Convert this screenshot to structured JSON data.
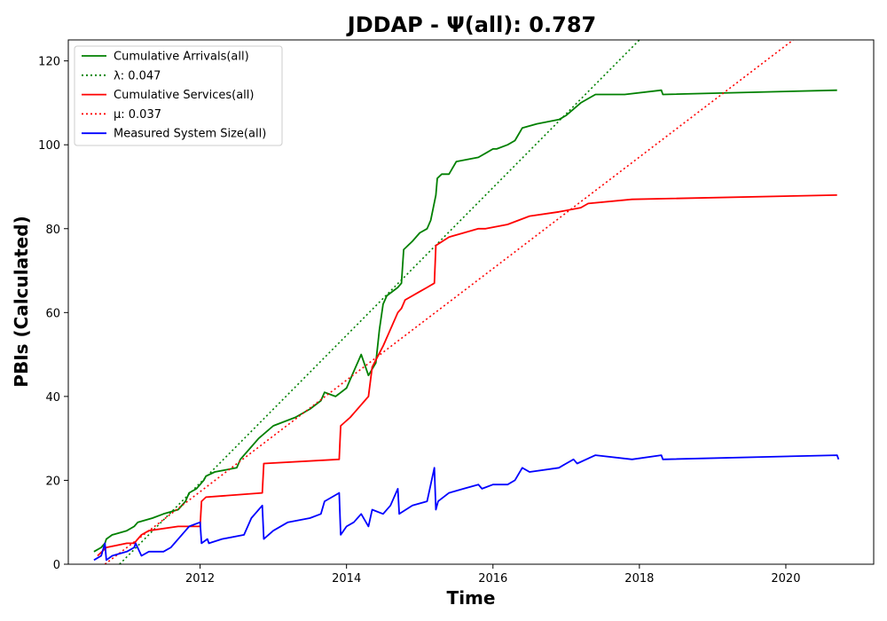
{
  "chart_data": {
    "type": "line",
    "title": "JDDAP -  Ψ(all): 0.787",
    "xlabel": "Time",
    "ylabel": "PBIs (Calculated)",
    "xlim": [
      2010.2,
      2021.2
    ],
    "ylim": [
      0,
      125
    ],
    "x_ticks": [
      2012,
      2014,
      2016,
      2018,
      2020
    ],
    "x_tick_labels": [
      "2012",
      "2014",
      "2016",
      "2018",
      "2020"
    ],
    "y_ticks": [
      0,
      20,
      40,
      60,
      80,
      100,
      120
    ],
    "y_tick_labels": [
      "0",
      "20",
      "40",
      "60",
      "80",
      "100",
      "120"
    ],
    "grid": false,
    "legend_position": "top-left",
    "series": [
      {
        "name": "Cumulative Arrivals(all)",
        "color": "#008000",
        "style": "solid",
        "x": [
          2010.55,
          2010.65,
          2010.7,
          2010.72,
          2010.8,
          2011.0,
          2011.1,
          2011.15,
          2011.35,
          2011.5,
          2011.7,
          2011.8,
          2011.85,
          2011.95,
          2012.0,
          2012.05,
          2012.08,
          2012.2,
          2012.5,
          2012.55,
          2012.7,
          2012.8,
          2013.0,
          2013.3,
          2013.5,
          2013.65,
          2013.7,
          2013.85,
          2014.0,
          2014.1,
          2014.2,
          2014.3,
          2014.4,
          2014.45,
          2014.5,
          2014.55,
          2014.7,
          2014.75,
          2014.78,
          2014.9,
          2015.0,
          2015.1,
          2015.15,
          2015.22,
          2015.24,
          2015.3,
          2015.4,
          2015.5,
          2015.8,
          2015.9,
          2016.0,
          2016.05,
          2016.2,
          2016.3,
          2016.4,
          2016.6,
          2016.9,
          2017.0,
          2017.2,
          2017.4,
          2017.8,
          2018.3,
          2018.32,
          2020.7
        ],
        "y": [
          3,
          4,
          5,
          6,
          7,
          8,
          9,
          10,
          11,
          12,
          13,
          15,
          17,
          18,
          19,
          20,
          21,
          22,
          23,
          25,
          28,
          30,
          33,
          35,
          37,
          39,
          41,
          40,
          42,
          46,
          50,
          45,
          48,
          56,
          62,
          64,
          66,
          67,
          75,
          77,
          79,
          80,
          82,
          88,
          92,
          93,
          93,
          96,
          97,
          98,
          99,
          99,
          100,
          101,
          104,
          105,
          106,
          107,
          110,
          112,
          112,
          113,
          112,
          113
        ]
      },
      {
        "name": "λ: 0.047",
        "color": "#008000",
        "style": "dotted",
        "x": [
          2010.9,
          2018.0
        ],
        "y": [
          0,
          125
        ]
      },
      {
        "name": "Cumulative Services(all)",
        "color": "#ff0000",
        "style": "solid",
        "x": [
          2010.6,
          2010.72,
          2011.0,
          2011.1,
          2011.15,
          2011.2,
          2011.3,
          2011.7,
          2012.0,
          2012.02,
          2012.08,
          2012.85,
          2012.87,
          2013.9,
          2013.92,
          2014.05,
          2014.1,
          2014.3,
          2014.35,
          2014.5,
          2014.7,
          2014.75,
          2014.8,
          2015.0,
          2015.1,
          2015.2,
          2015.22,
          2015.4,
          2015.6,
          2015.8,
          2015.9,
          2016.2,
          2016.5,
          2016.9,
          2017.2,
          2017.3,
          2017.9,
          2020.7
        ],
        "y": [
          2,
          4,
          5,
          5,
          6,
          7,
          8,
          9,
          9,
          15,
          16,
          17,
          24,
          25,
          33,
          35,
          36,
          40,
          47,
          52,
          60,
          61,
          63,
          65,
          66,
          67,
          76,
          78,
          79,
          80,
          80,
          81,
          83,
          84,
          85,
          86,
          87,
          88
        ]
      },
      {
        "name": "μ: 0.037",
        "color": "#ff0000",
        "style": "dotted",
        "x": [
          2010.7,
          2020.1
        ],
        "y": [
          0,
          125
        ]
      },
      {
        "name": "Measured System Size(all)",
        "color": "#0000ff",
        "style": "solid",
        "x": [
          2010.55,
          2010.65,
          2010.7,
          2010.72,
          2010.8,
          2011.0,
          2011.1,
          2011.12,
          2011.2,
          2011.3,
          2011.5,
          2011.6,
          2011.8,
          2011.85,
          2012.0,
          2012.02,
          2012.1,
          2012.12,
          2012.3,
          2012.6,
          2012.7,
          2012.85,
          2012.87,
          2013.0,
          2013.2,
          2013.5,
          2013.65,
          2013.7,
          2013.8,
          2013.9,
          2013.92,
          2014.0,
          2014.1,
          2014.2,
          2014.3,
          2014.35,
          2014.5,
          2014.6,
          2014.7,
          2014.72,
          2014.9,
          2015.1,
          2015.2,
          2015.22,
          2015.25,
          2015.4,
          2015.6,
          2015.8,
          2015.85,
          2016.0,
          2016.2,
          2016.3,
          2016.4,
          2016.5,
          2016.9,
          2017.0,
          2017.1,
          2017.15,
          2017.4,
          2017.9,
          2018.3,
          2018.32,
          2020.7,
          2020.72
        ],
        "y": [
          1,
          2,
          5,
          1,
          2,
          3,
          4,
          5,
          2,
          3,
          3,
          4,
          8,
          9,
          10,
          5,
          6,
          5,
          6,
          7,
          11,
          14,
          6,
          8,
          10,
          11,
          12,
          15,
          16,
          17,
          7,
          9,
          10,
          12,
          9,
          13,
          12,
          14,
          18,
          12,
          14,
          15,
          23,
          13,
          15,
          17,
          18,
          19,
          18,
          19,
          19,
          20,
          23,
          22,
          23,
          24,
          25,
          24,
          26,
          25,
          26,
          25,
          26,
          25
        ]
      }
    ]
  }
}
